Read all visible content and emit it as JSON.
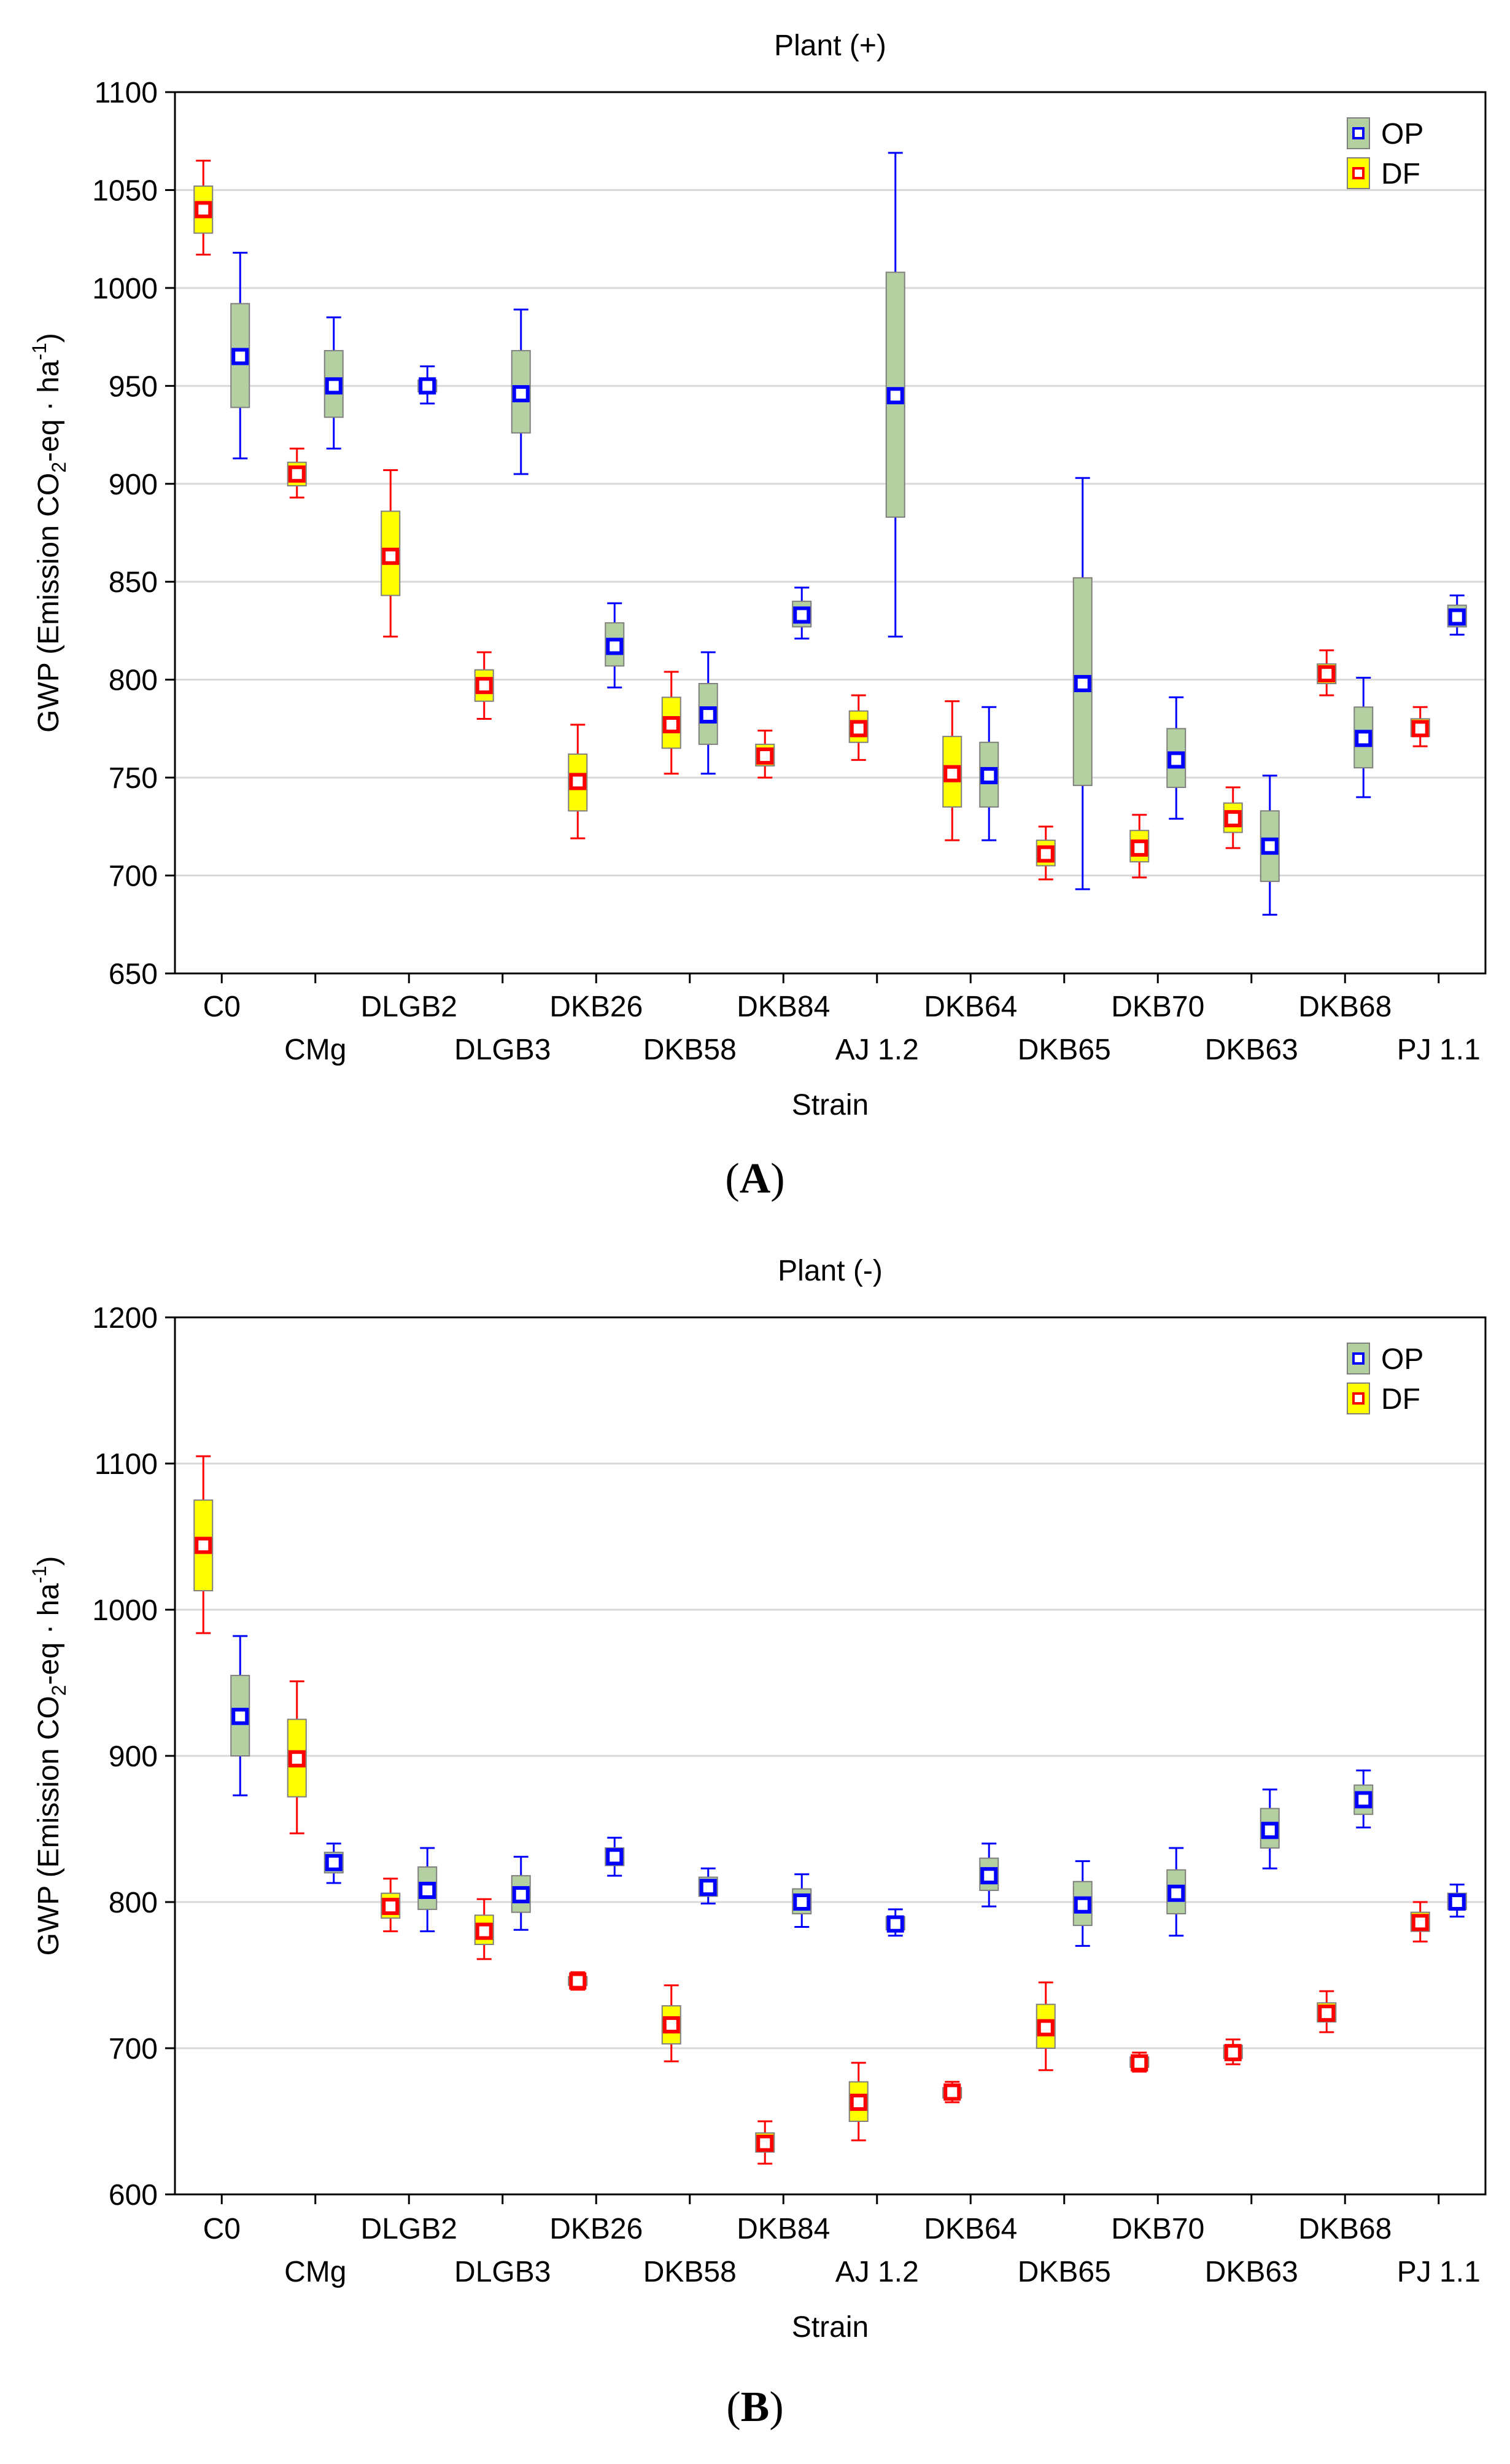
{
  "chart_data": [
    {
      "type": "box",
      "panel": "A",
      "title": "Plant (+)",
      "xlabel": "Strain",
      "ylabel": "GWP (Emission CO2-eq · ha-1)",
      "ylabel_parts": {
        "main": "GWP (Emission CO",
        "sub": "2",
        "mid": "-eq · ha",
        "sup": "-1",
        "end": ")"
      },
      "ylim": [
        650,
        1100
      ],
      "yticks": [
        650,
        700,
        750,
        800,
        850,
        900,
        950,
        1000,
        1050,
        1100
      ],
      "grid": true,
      "legend_position": "top-right",
      "categories": [
        "C0",
        "CMg",
        "DLGB2",
        "DLGB3",
        "DKB26",
        "DKB58",
        "DKB84",
        "AJ 1.2",
        "DKB64",
        "DKB65",
        "DKB70",
        "DKB63",
        "DKB68",
        "PJ 1.1"
      ],
      "series": [
        {
          "name": "OP",
          "color": "#0000ff",
          "box_color": "#b5d0a0",
          "points": [
            {
              "category": "C0",
              "mean": 965,
              "q1": 939,
              "q3": 992,
              "min": 913,
              "max": 1018
            },
            {
              "category": "CMg",
              "mean": 950,
              "q1": 934,
              "q3": 968,
              "min": 918,
              "max": 985
            },
            {
              "category": "DLGB2",
              "mean": 950,
              "q1": 947,
              "q3": 953,
              "min": 941,
              "max": 960
            },
            {
              "category": "DLGB3",
              "mean": 946,
              "q1": 926,
              "q3": 968,
              "min": 905,
              "max": 989
            },
            {
              "category": "DKB26",
              "mean": 817,
              "q1": 807,
              "q3": 829,
              "min": 796,
              "max": 839
            },
            {
              "category": "DKB58",
              "mean": 782,
              "q1": 767,
              "q3": 798,
              "min": 752,
              "max": 814
            },
            {
              "category": "DKB84",
              "mean": 833,
              "q1": 827,
              "q3": 840,
              "min": 821,
              "max": 847
            },
            {
              "category": "AJ 1.2",
              "mean": 945,
              "q1": 883,
              "q3": 1008,
              "min": 822,
              "max": 1069
            },
            {
              "category": "DKB64",
              "mean": 751,
              "q1": 735,
              "q3": 768,
              "min": 718,
              "max": 786
            },
            {
              "category": "DKB65",
              "mean": 798,
              "q1": 746,
              "q3": 852,
              "min": 693,
              "max": 903
            },
            {
              "category": "DKB70",
              "mean": 759,
              "q1": 745,
              "q3": 775,
              "min": 729,
              "max": 791
            },
            {
              "category": "DKB63",
              "mean": 715,
              "q1": 697,
              "q3": 733,
              "min": 680,
              "max": 751
            },
            {
              "category": "DKB68",
              "mean": 770,
              "q1": 755,
              "q3": 786,
              "min": 740,
              "max": 801
            },
            {
              "category": "PJ 1.1",
              "mean": 832,
              "q1": 827,
              "q3": 838,
              "min": 823,
              "max": 843
            }
          ]
        },
        {
          "name": "DF",
          "color": "#ff0000",
          "box_color": "#ffff00",
          "points": [
            {
              "category": "C0",
              "mean": 1040,
              "q1": 1028,
              "q3": 1052,
              "min": 1017,
              "max": 1065
            },
            {
              "category": "CMg",
              "mean": 905,
              "q1": 899,
              "q3": 911,
              "min": 893,
              "max": 918
            },
            {
              "category": "DLGB2",
              "mean": 863,
              "q1": 843,
              "q3": 886,
              "min": 822,
              "max": 907
            },
            {
              "category": "DLGB3",
              "mean": 797,
              "q1": 789,
              "q3": 805,
              "min": 780,
              "max": 814
            },
            {
              "category": "DKB26",
              "mean": 748,
              "q1": 733,
              "q3": 762,
              "min": 719,
              "max": 777
            },
            {
              "category": "DKB58",
              "mean": 777,
              "q1": 765,
              "q3": 791,
              "min": 752,
              "max": 804
            },
            {
              "category": "DKB84",
              "mean": 761,
              "q1": 756,
              "q3": 767,
              "min": 750,
              "max": 774
            },
            {
              "category": "AJ 1.2",
              "mean": 775,
              "q1": 768,
              "q3": 784,
              "min": 759,
              "max": 792
            },
            {
              "category": "DKB64",
              "mean": 752,
              "q1": 735,
              "q3": 771,
              "min": 718,
              "max": 789
            },
            {
              "category": "DKB65",
              "mean": 711,
              "q1": 705,
              "q3": 718,
              "min": 698,
              "max": 725
            },
            {
              "category": "DKB70",
              "mean": 714,
              "q1": 707,
              "q3": 723,
              "min": 699,
              "max": 731
            },
            {
              "category": "DKB63",
              "mean": 729,
              "q1": 722,
              "q3": 737,
              "min": 714,
              "max": 745
            },
            {
              "category": "DKB68",
              "mean": 803,
              "q1": 798,
              "q3": 808,
              "min": 792,
              "max": 815
            },
            {
              "category": "PJ 1.1",
              "mean": 775,
              "q1": 771,
              "q3": 780,
              "min": 766,
              "max": 786
            }
          ]
        }
      ]
    },
    {
      "type": "box",
      "panel": "B",
      "title": "Plant (-)",
      "xlabel": "Strain",
      "ylabel": "GWP (Emission CO2-eq · ha-1)",
      "ylabel_parts": {
        "main": "GWP (Emission CO",
        "sub": "2",
        "mid": "-eq · ha",
        "sup": "-1",
        "end": ")"
      },
      "ylim": [
        600,
        1200
      ],
      "yticks": [
        600,
        700,
        800,
        900,
        1000,
        1100,
        1200
      ],
      "grid": true,
      "legend_position": "top-right",
      "categories": [
        "C0",
        "CMg",
        "DLGB2",
        "DLGB3",
        "DKB26",
        "DKB58",
        "DKB84",
        "AJ 1.2",
        "DKB64",
        "DKB65",
        "DKB70",
        "DKB63",
        "DKB68",
        "PJ 1.1"
      ],
      "series": [
        {
          "name": "OP",
          "color": "#0000ff",
          "box_color": "#b5d0a0",
          "points": [
            {
              "category": "C0",
              "mean": 927,
              "q1": 900,
              "q3": 955,
              "min": 873,
              "max": 982
            },
            {
              "category": "CMg",
              "mean": 827,
              "q1": 820,
              "q3": 834,
              "min": 813,
              "max": 840
            },
            {
              "category": "DLGB2",
              "mean": 808,
              "q1": 795,
              "q3": 824,
              "min": 780,
              "max": 837
            },
            {
              "category": "DLGB3",
              "mean": 805,
              "q1": 793,
              "q3": 818,
              "min": 781,
              "max": 831
            },
            {
              "category": "DKB26",
              "mean": 831,
              "q1": 825,
              "q3": 837,
              "min": 818,
              "max": 844
            },
            {
              "category": "DKB58",
              "mean": 810,
              "q1": 804,
              "q3": 817,
              "min": 799,
              "max": 823
            },
            {
              "category": "DKB84",
              "mean": 800,
              "q1": 792,
              "q3": 809,
              "min": 783,
              "max": 819
            },
            {
              "category": "AJ 1.2",
              "mean": 785,
              "q1": 781,
              "q3": 790,
              "min": 777,
              "max": 795
            },
            {
              "category": "DKB64",
              "mean": 818,
              "q1": 808,
              "q3": 830,
              "min": 797,
              "max": 840
            },
            {
              "category": "DKB65",
              "mean": 798,
              "q1": 784,
              "q3": 814,
              "min": 770,
              "max": 828
            },
            {
              "category": "DKB70",
              "mean": 806,
              "q1": 792,
              "q3": 822,
              "min": 777,
              "max": 837
            },
            {
              "category": "DKB63",
              "mean": 849,
              "q1": 837,
              "q3": 864,
              "min": 823,
              "max": 877
            },
            {
              "category": "DKB68",
              "mean": 870,
              "q1": 860,
              "q3": 880,
              "min": 851,
              "max": 890
            },
            {
              "category": "PJ 1.1",
              "mean": 800,
              "q1": 795,
              "q3": 806,
              "min": 790,
              "max": 812
            }
          ]
        },
        {
          "name": "DF",
          "color": "#ff0000",
          "box_color": "#ffff00",
          "points": [
            {
              "category": "C0",
              "mean": 1044,
              "q1": 1013,
              "q3": 1075,
              "min": 984,
              "max": 1105
            },
            {
              "category": "CMg",
              "mean": 898,
              "q1": 872,
              "q3": 925,
              "min": 847,
              "max": 951
            },
            {
              "category": "DLGB2",
              "mean": 797,
              "q1": 789,
              "q3": 806,
              "min": 780,
              "max": 816
            },
            {
              "category": "DLGB3",
              "mean": 780,
              "q1": 771,
              "q3": 791,
              "min": 761,
              "max": 802
            },
            {
              "category": "DKB26",
              "mean": 746,
              "q1": 743,
              "q3": 749,
              "min": 740,
              "max": 752
            },
            {
              "category": "DKB58",
              "mean": 716,
              "q1": 703,
              "q3": 729,
              "min": 691,
              "max": 743
            },
            {
              "category": "DKB84",
              "mean": 635,
              "q1": 629,
              "q3": 642,
              "min": 621,
              "max": 650
            },
            {
              "category": "AJ 1.2",
              "mean": 663,
              "q1": 650,
              "q3": 677,
              "min": 637,
              "max": 690
            },
            {
              "category": "DKB64",
              "mean": 670,
              "q1": 666,
              "q3": 673,
              "min": 663,
              "max": 677
            },
            {
              "category": "DKB65",
              "mean": 714,
              "q1": 700,
              "q3": 730,
              "min": 685,
              "max": 745
            },
            {
              "category": "DKB70",
              "mean": 690,
              "q1": 687,
              "q3": 694,
              "min": 684,
              "max": 697
            },
            {
              "category": "DKB63",
              "mean": 697,
              "q1": 693,
              "q3": 702,
              "min": 689,
              "max": 706
            },
            {
              "category": "DKB68",
              "mean": 724,
              "q1": 718,
              "q3": 731,
              "min": 711,
              "max": 739
            },
            {
              "category": "PJ 1.1",
              "mean": 786,
              "q1": 780,
              "q3": 793,
              "min": 773,
              "max": 800
            }
          ]
        }
      ]
    }
  ]
}
